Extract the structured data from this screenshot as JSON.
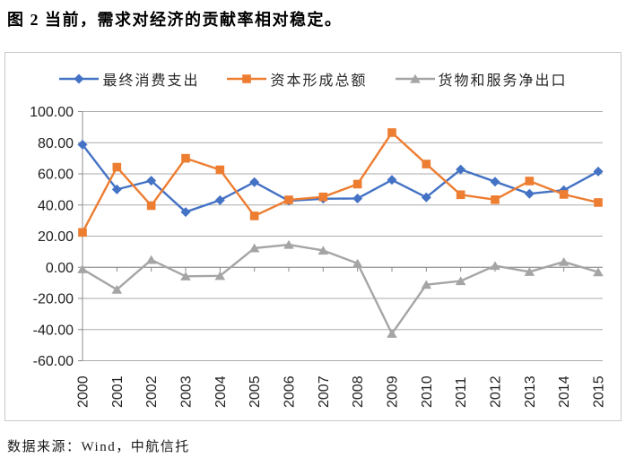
{
  "page": {
    "title": "图 2 当前，需求对经济的贡献率相对稳定。",
    "source": "数据来源：Wind，中航信托"
  },
  "colors": {
    "gridline": "#ababab",
    "axis": "#8c8c8c",
    "frame_border": "#c9c9c9",
    "text": "#1f1f1f"
  },
  "chart_data": {
    "type": "line",
    "title": "图 2 当前，需求对经济的贡献率相对稳定。",
    "xlabel": "",
    "ylabel": "",
    "x": [
      "2000",
      "2001",
      "2002",
      "2003",
      "2004",
      "2005",
      "2006",
      "2007",
      "2008",
      "2009",
      "2010",
      "2011",
      "2012",
      "2013",
      "2014",
      "2015"
    ],
    "series": [
      {
        "name": "最终消费支出",
        "color": "#4472c4",
        "marker": "diamond",
        "values": [
          78.8,
          50.0,
          55.6,
          35.5,
          43.1,
          54.7,
          42.7,
          44.0,
          44.2,
          56.1,
          44.9,
          62.8,
          55.0,
          47.2,
          49.5,
          61.5
        ]
      },
      {
        "name": "资本形成总额",
        "color": "#ed7d31",
        "marker": "square",
        "values": [
          22.4,
          64.3,
          39.6,
          70.0,
          62.6,
          33.0,
          43.3,
          45.2,
          53.4,
          86.5,
          66.3,
          46.6,
          43.4,
          55.4,
          46.8,
          41.6
        ]
      },
      {
        "name": "货物和服务净出口",
        "color": "#a5a5a5",
        "marker": "triangle",
        "values": [
          -1.2,
          -14.3,
          4.8,
          -5.8,
          -5.5,
          12.3,
          14.5,
          10.8,
          2.5,
          -42.6,
          -11.2,
          -8.8,
          1.0,
          -2.9,
          3.5,
          -3.1
        ]
      }
    ],
    "ylim": [
      -60,
      100
    ],
    "ytick_step": 20,
    "ytick_labels": [
      "100.00",
      "80.00",
      "60.00",
      "40.00",
      "20.00",
      "0.00",
      "-20.00",
      "-40.00",
      "-60.00"
    ],
    "grid": true,
    "legend_position": "top"
  }
}
